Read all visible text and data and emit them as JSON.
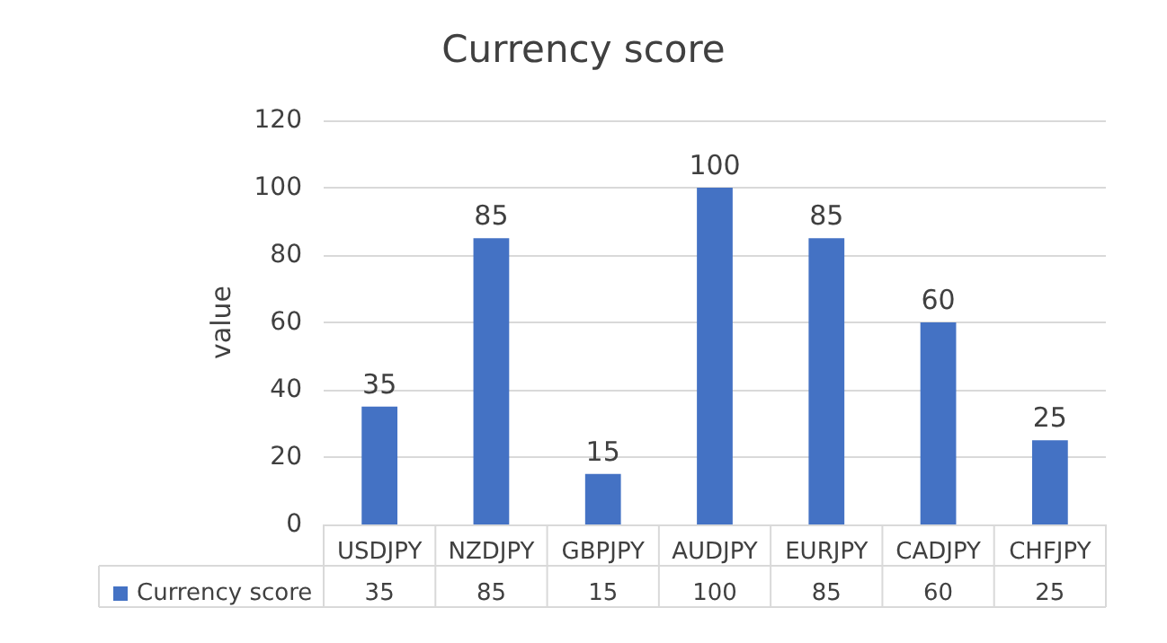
{
  "chart_data": {
    "type": "bar",
    "title": "Currency score",
    "ylabel": "value",
    "categories": [
      "USDJPY",
      "NZDJPY",
      "GBPJPY",
      "AUDJPY",
      "EURJPY",
      "CADJPY",
      "CHFJPY"
    ],
    "series": [
      {
        "name": "Currency score",
        "color": "#4472c4",
        "values": [
          35,
          85,
          15,
          100,
          85,
          60,
          25
        ],
        "value_labels": [
          "35",
          "85",
          "15",
          "100",
          "85",
          "60",
          "25"
        ]
      }
    ],
    "ylim": [
      0,
      120
    ],
    "yticks": [
      0,
      20,
      40,
      60,
      80,
      100,
      120
    ],
    "grid": "y",
    "legend": "bottom",
    "annotations": [
      "35",
      "85",
      "15",
      "100",
      "85",
      "60",
      "25"
    ]
  }
}
